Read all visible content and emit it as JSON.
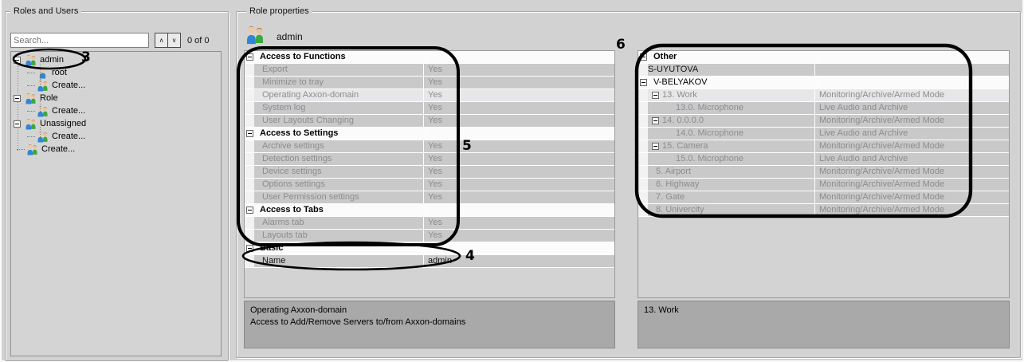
{
  "left_panel": {
    "title": "Roles and Users",
    "search": {
      "placeholder": "Search...",
      "count": "0 of 0",
      "prev_glyph": "∧",
      "next_glyph": "∨"
    },
    "tree": [
      {
        "label": "admin",
        "level": 0,
        "icon": "role",
        "expander": true
      },
      {
        "label": "root",
        "level": 1,
        "icon": "user"
      },
      {
        "label": "Create...",
        "level": 1,
        "icon": "role"
      },
      {
        "label": "Role",
        "level": 0,
        "icon": "role",
        "expander": true
      },
      {
        "label": "Create...",
        "level": 1,
        "icon": "role"
      },
      {
        "label": "Unassigned",
        "level": 0,
        "icon": "role",
        "expander": true
      },
      {
        "label": "Create...",
        "level": 1,
        "icon": "role"
      },
      {
        "label": "Create...",
        "level": 0,
        "icon": "role"
      }
    ]
  },
  "right_panel": {
    "title": "Role properties",
    "selected_role": {
      "name": "admin"
    },
    "permissions_grid": {
      "rows": [
        {
          "type": "group",
          "label": "Access to Functions",
          "expander": true
        },
        {
          "type": "prop",
          "level": 1,
          "label": "Export",
          "value": "Yes"
        },
        {
          "type": "prop",
          "level": 1,
          "label": "Minimize to tray",
          "value": "Yes"
        },
        {
          "type": "prop",
          "level": 1,
          "label": "Operating Axxon-domain",
          "value": "Yes",
          "selected": true
        },
        {
          "type": "prop",
          "level": 1,
          "label": "System log",
          "value": "Yes"
        },
        {
          "type": "prop",
          "level": 1,
          "label": "User Layouts Changing",
          "value": "Yes"
        },
        {
          "type": "group",
          "label": "Access to Settings",
          "expander": true
        },
        {
          "type": "prop",
          "level": 1,
          "label": "Archive settings",
          "value": "Yes"
        },
        {
          "type": "prop",
          "level": 1,
          "label": "Detection settings",
          "value": "Yes"
        },
        {
          "type": "prop",
          "level": 1,
          "label": "Device settings",
          "value": "Yes"
        },
        {
          "type": "prop",
          "level": 1,
          "label": "Options settings",
          "value": "Yes"
        },
        {
          "type": "prop",
          "level": 1,
          "label": "User Permission settings",
          "value": "Yes"
        },
        {
          "type": "group",
          "label": "Access to Tabs",
          "expander": true
        },
        {
          "type": "prop",
          "level": 1,
          "label": "Alarms tab",
          "value": "Yes"
        },
        {
          "type": "prop",
          "level": 1,
          "label": "Layouts tab",
          "value": "Yes"
        },
        {
          "type": "group",
          "label": "Basic",
          "expander": true
        },
        {
          "type": "prop",
          "level": 1,
          "label": "Name",
          "value": "admin",
          "dark": true
        }
      ],
      "description": {
        "title": "Operating Axxon-domain",
        "text": "Access to Add/Remove Servers to/from Axxon-domains"
      }
    },
    "devices_grid": {
      "rows": [
        {
          "type": "group",
          "label": "Other",
          "expander": true
        },
        {
          "type": "prop",
          "level": 0,
          "label": "S-UYUTOVA",
          "value": "",
          "dark": true
        },
        {
          "type": "group",
          "label": "V-BELYAKOV",
          "expander": true,
          "bold": false
        },
        {
          "type": "prop",
          "level": 1,
          "expander": true,
          "label": "13. Work",
          "value": "Monitoring/Archive/Armed Mode",
          "selected": true
        },
        {
          "type": "prop",
          "level": 2,
          "label": "13.0. Microphone",
          "value": "Live Audio and Archive"
        },
        {
          "type": "prop",
          "level": 1,
          "expander": true,
          "label": "14. 0.0.0.0",
          "value": "Monitoring/Archive/Armed Mode"
        },
        {
          "type": "prop",
          "level": 2,
          "label": "14.0. Microphone",
          "value": "Live Audio and Archive"
        },
        {
          "type": "prop",
          "level": 1,
          "expander": true,
          "label": "15. Camera",
          "value": "Monitoring/Archive/Armed Mode"
        },
        {
          "type": "prop",
          "level": 2,
          "label": "15.0. Microphone",
          "value": "Live Audio and Archive"
        },
        {
          "type": "prop",
          "level": 1,
          "label": "5. Airport",
          "value": "Monitoring/Archive/Armed Mode"
        },
        {
          "type": "prop",
          "level": 1,
          "label": "6. Highway",
          "value": "Monitoring/Archive/Armed Mode"
        },
        {
          "type": "prop",
          "level": 1,
          "label": "7. Gate",
          "value": "Monitoring/Archive/Armed Mode"
        },
        {
          "type": "prop",
          "level": 1,
          "label": "8. Univercity",
          "value": "Monitoring/Archive/Armed Mode"
        }
      ],
      "description": {
        "title": "13. Work",
        "text": ""
      }
    }
  },
  "annotations": {
    "tree_admin": "3",
    "basic_section": "4",
    "permissions_section": "5",
    "devices_section": "6",
    "color": "#000000"
  }
}
